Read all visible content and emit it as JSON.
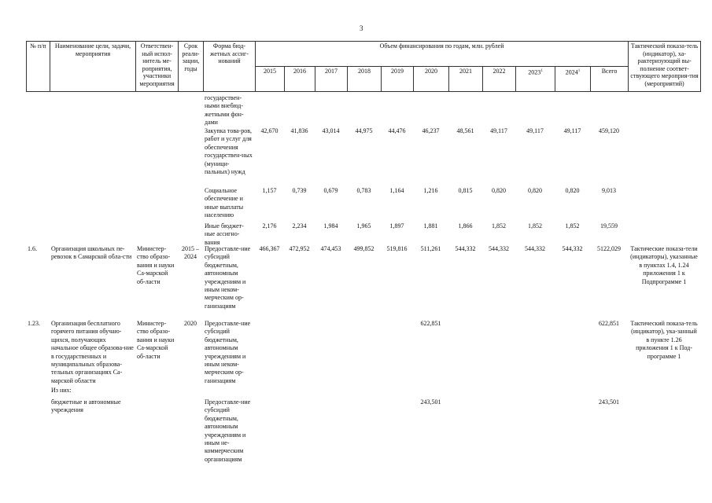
{
  "page_number": "3",
  "header": {
    "num": "№ п/п",
    "name": "Наименование цели, задачи, мероприятия",
    "resp": "Ответствен-ный испол-нитель ме-роприятия, участники мероприятия",
    "term": "Срок реали-зации, годы",
    "form": "Форма бюд-жетных ассиг-нований",
    "funding": "Объем финансирования по годам, млн. рублей",
    "years": [
      "2015",
      "2016",
      "2017",
      "2018",
      "2019",
      "2020",
      "2021",
      "2022",
      "2023",
      "2024"
    ],
    "year_notes": [
      "",
      "",
      "",
      "",
      "",
      "",
      "",
      "",
      "1",
      "1"
    ],
    "total": "Всего",
    "indicator": "Тактический показа-тель (индикатор), ха-рактеризующий вы-полнение соответ-ствующего мероприя-тия (мероприятий)"
  },
  "rows": [
    {
      "num": "",
      "name": "",
      "resp": "",
      "term": "",
      "form": "государствен-ными внебюд-жетными фон-дами",
      "values": [
        "",
        "",
        "",
        "",
        "",
        "",
        "",
        "",
        "",
        ""
      ],
      "total": "",
      "indicator": ""
    },
    {
      "num": "",
      "name": "",
      "resp": "",
      "term": "",
      "form": "Закупка това-ров, работ и услуг для обеспечения государствен-ных (муници-пальных) нужд",
      "values": [
        "42,670",
        "41,836",
        "43,014",
        "44,975",
        "44,476",
        "46,237",
        "48,561",
        "49,117",
        "49,117",
        "49,117"
      ],
      "total": "459,120",
      "indicator": ""
    },
    {
      "num": "",
      "name": "",
      "resp": "",
      "term": "",
      "form": "Социальное обеспечение и иные выплаты населению",
      "values": [
        "1,157",
        "0,739",
        "0,679",
        "0,783",
        "1,164",
        "1,216",
        "0,815",
        "0,820",
        "0,820",
        "0,820"
      ],
      "total": "9,013",
      "indicator": ""
    },
    {
      "num": "",
      "name": "",
      "resp": "",
      "term": "",
      "form": "Иные бюджет-ные ассигно-вания",
      "values": [
        "2,176",
        "2,234",
        "1,984",
        "1,965",
        "1,897",
        "1,881",
        "1,866",
        "1,852",
        "1,852",
        "1,852"
      ],
      "total": "19,559",
      "indicator": ""
    },
    {
      "num": "1.6.",
      "name": "Организация школьных пе-ревозок в Самарской обла-сти",
      "resp": "Министер-ство образо-вания и науки Са-марской об-ласти",
      "term": "2015 – 2024",
      "form": "Предоставле-ние субсидий бюджетным, автономным учреждениям и иным неком-мерческим ор-ганизациям",
      "values": [
        "466,367",
        "472,952",
        "474,453",
        "499,852",
        "519,816",
        "511,261",
        "544,332",
        "544,332",
        "544,332",
        "544,332"
      ],
      "total": "5122,029",
      "indicator": "Тактические показа-тели (индикаторы), указанные в пунктах 1.4, 1.24 приложения 1 к Подпрограмме 1"
    },
    {
      "num": "1.23.",
      "name": "Организация бесплатного горячего питания обучаю-щихся, получающих начальное общее образова-ние в государственных и муниципальных образова-тельных организациях Са-марской области",
      "resp": "Министер-ство образо-вания и науки Са-марской об-ласти",
      "term": "2020",
      "form": "Предоставле-ние субсидий бюджетным, автономным учреждениям и иным неком-мерческим ор-ганизациям",
      "values": [
        "",
        "",
        "",
        "",
        "",
        "622,851",
        "",
        "",
        "",
        ""
      ],
      "total": "622,851",
      "indicator": "Тактический показа-тель (индикатор), ука-занный в пункте 1.26 приложения 1 к Под-программе 1"
    },
    {
      "num": "",
      "name": "Из них:",
      "resp": "",
      "term": "",
      "form": "",
      "values": [
        "",
        "",
        "",
        "",
        "",
        "",
        "",
        "",
        "",
        ""
      ],
      "total": "",
      "indicator": ""
    },
    {
      "num": "",
      "name": "бюджетные и автономные учреждения",
      "resp": "",
      "term": "",
      "form": "Предоставле-ние субсидий бюджетным, автономным учреждениям и иным не-коммерческим организациям",
      "values": [
        "",
        "",
        "",
        "",
        "",
        "243,501",
        "",
        "",
        "",
        ""
      ],
      "total": "243,501",
      "indicator": ""
    }
  ]
}
